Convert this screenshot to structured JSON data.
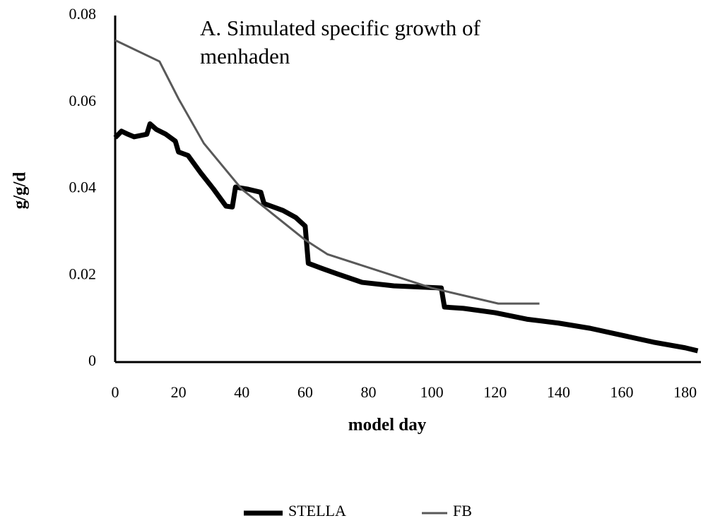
{
  "chart_data": {
    "type": "line",
    "title": "A. Simulated specific growth of menhaden",
    "x_label": "model day",
    "y_label": "g/g/d",
    "xlim": [
      0,
      185
    ],
    "xticks": [
      0,
      20,
      40,
      60,
      80,
      100,
      120,
      140,
      160,
      180
    ],
    "ylim": [
      0,
      0.08
    ],
    "yticks": [
      0,
      0.02,
      0.04,
      0.06,
      0.08
    ],
    "legend": "bottom",
    "series": [
      {
        "name": "STELLA",
        "color": "#000000",
        "x": [
          0,
          2,
          4,
          6,
          10,
          11,
          13,
          16,
          19,
          20,
          23,
          27,
          31,
          35,
          37,
          38,
          42,
          46,
          47,
          53,
          57,
          60,
          61,
          65,
          70,
          78,
          88,
          103,
          104,
          110,
          120,
          130,
          140,
          150,
          160,
          170,
          180,
          184
        ],
        "values": [
          0.0518,
          0.0533,
          0.0526,
          0.052,
          0.0526,
          0.055,
          0.0537,
          0.0526,
          0.051,
          0.0485,
          0.0477,
          0.0437,
          0.04,
          0.036,
          0.0358,
          0.0404,
          0.0399,
          0.0392,
          0.0366,
          0.035,
          0.0334,
          0.0314,
          0.0228,
          0.0217,
          0.0204,
          0.0184,
          0.0176,
          0.0171,
          0.0127,
          0.0124,
          0.0114,
          0.0099,
          0.009,
          0.0078,
          0.0062,
          0.0046,
          0.0033,
          0.0026
        ]
      },
      {
        "name": "FB",
        "color": "#595959",
        "x": [
          0,
          14,
          20,
          28,
          40,
          60,
          67,
          100,
          121,
          134
        ],
        "values": [
          0.0743,
          0.0694,
          0.0608,
          0.0505,
          0.0399,
          0.0282,
          0.0249,
          0.0171,
          0.0135,
          0.0135
        ]
      }
    ]
  }
}
